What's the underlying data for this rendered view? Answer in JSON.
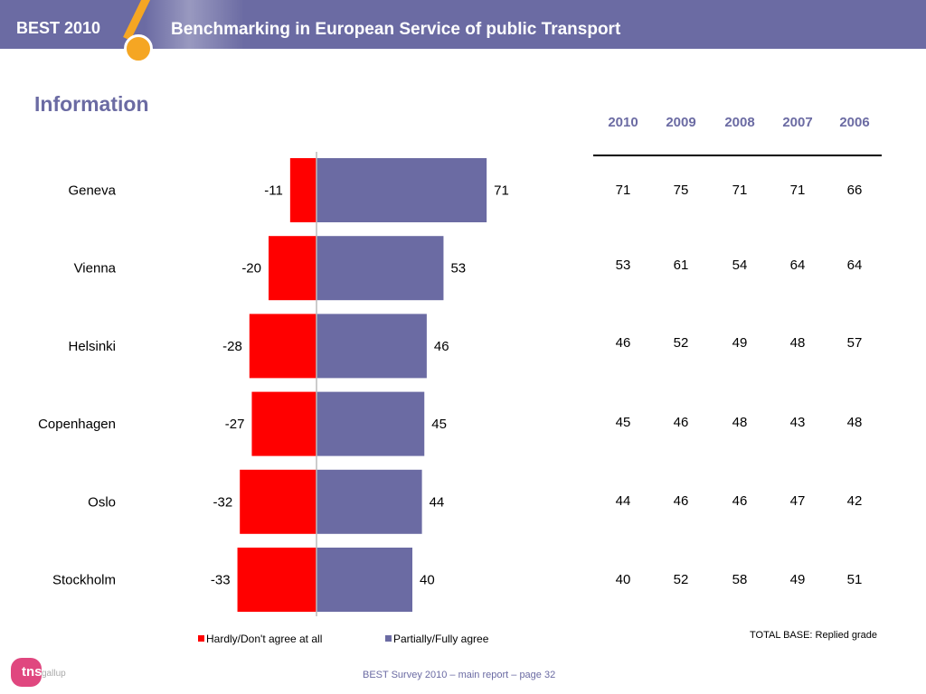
{
  "header": {
    "badge": "BEST 2010",
    "title": "Benchmarking in European Service of public Transport"
  },
  "page_title": "Information",
  "chart_data": {
    "type": "bar",
    "orientation": "horizontal-diverging",
    "categories": [
      "Geneva",
      "Vienna",
      "Helsinki",
      "Copenhagen",
      "Oslo",
      "Stockholm"
    ],
    "series": [
      {
        "name": "Hardly/Don't agree at all",
        "values": [
          -11,
          -20,
          -28,
          -27,
          -32,
          -33
        ],
        "color": "#ff0000"
      },
      {
        "name": "Partially/Fully agree",
        "values": [
          71,
          53,
          46,
          45,
          44,
          40
        ],
        "color": "#6b6ba3"
      }
    ],
    "xlim": [
      -35,
      75
    ],
    "legend": "bottom",
    "grid": false
  },
  "table": {
    "years": [
      "2010",
      "2009",
      "2008",
      "2007",
      "2006"
    ],
    "rows": [
      [
        "71",
        "75",
        "71",
        "71",
        "66"
      ],
      [
        "53",
        "61",
        "54",
        "64",
        "64"
      ],
      [
        "46",
        "52",
        "49",
        "48",
        "57"
      ],
      [
        "45",
        "46",
        "48",
        "43",
        "48"
      ],
      [
        "44",
        "46",
        "46",
        "47",
        "42"
      ],
      [
        "40",
        "52",
        "58",
        "49",
        "51"
      ]
    ]
  },
  "legend": {
    "negative_label": "Hardly/Don't agree at all",
    "positive_label": "Partially/Fully agree",
    "negative_color": "#ff0000",
    "positive_color": "#6b6ba3"
  },
  "total_base": "TOTAL BASE: Replied grade",
  "footer": "BEST Survey 2010 – main report – page 32",
  "logo": {
    "text": "tns",
    "sub": "gallup"
  }
}
